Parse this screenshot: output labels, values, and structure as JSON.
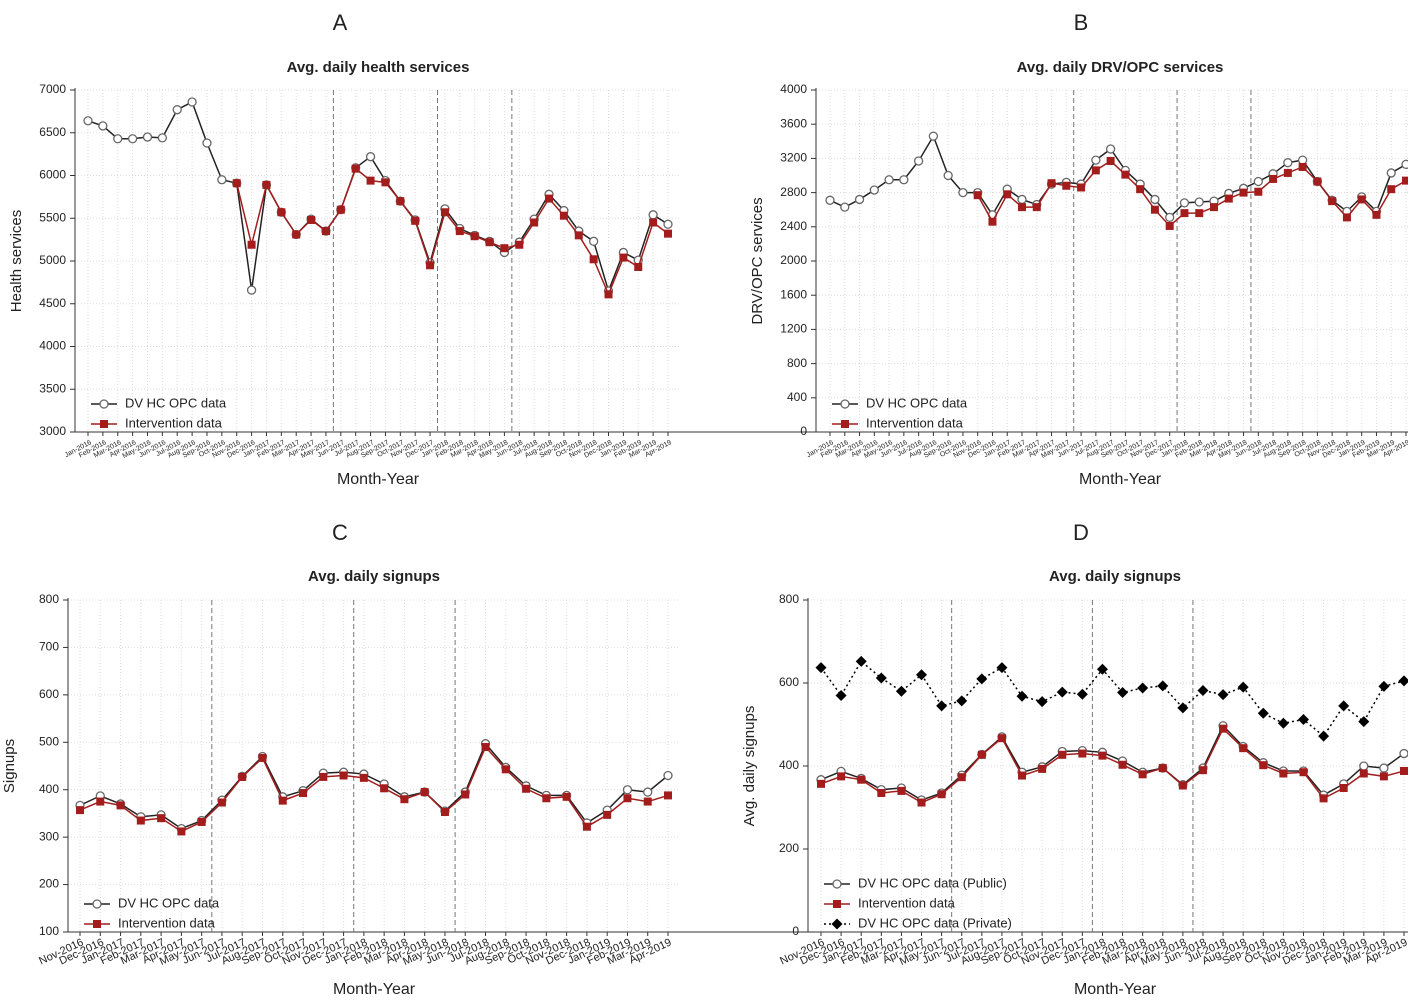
{
  "chart_data": [
    {
      "type": "line",
      "panel_label": "A",
      "title": "Avg. daily health services",
      "xlabel": "Month-Year",
      "ylabel": "Health services",
      "categories": [
        "Jan-2016",
        "Feb-2016",
        "Mar-2016",
        "Apr-2016",
        "May-2016",
        "Jun-2016",
        "Jul-2016",
        "Aug-2016",
        "Sep-2016",
        "Oct-2016",
        "Nov-2016",
        "Dec-2016",
        "Jan-2017",
        "Feb-2017",
        "Mar-2017",
        "Apr-2017",
        "May-2017",
        "Jun-2017",
        "Jul-2017",
        "Aug-2017",
        "Sep-2017",
        "Oct-2017",
        "Nov-2017",
        "Dec-2017",
        "Jan-2018",
        "Feb-2018",
        "Mar-2018",
        "Apr-2018",
        "May-2018",
        "Jun-2018",
        "Jul-2018",
        "Aug-2018",
        "Sep-2018",
        "Oct-2018",
        "Nov-2018",
        "Dec-2018",
        "Jan-2019",
        "Feb-2019",
        "Mar-2019",
        "Apr-2019"
      ],
      "series": [
        {
          "name": "DV HC OPC data",
          "color": "#222222",
          "marker": "circle",
          "dash": "solid",
          "values": [
            6640,
            6580,
            6430,
            6430,
            6450,
            6440,
            6770,
            6860,
            6380,
            5950,
            5910,
            4660,
            5890,
            5570,
            5310,
            5490,
            5350,
            5600,
            6090,
            6220,
            5940,
            5700,
            5480,
            4980,
            5610,
            5380,
            5300,
            5230,
            5100,
            5220,
            5490,
            5780,
            5590,
            5350,
            5230,
            4650,
            5100,
            5010,
            5540,
            5430
          ]
        },
        {
          "name": "Intervention data",
          "color": "#a31d1d",
          "marker": "square",
          "dash": "solid",
          "values": [
            null,
            null,
            null,
            null,
            null,
            null,
            null,
            null,
            null,
            null,
            5910,
            5190,
            5890,
            5570,
            5310,
            5480,
            5350,
            5600,
            6080,
            5940,
            5920,
            5700,
            5470,
            4950,
            5570,
            5350,
            5290,
            5220,
            5150,
            5190,
            5450,
            5730,
            5530,
            5300,
            5020,
            4610,
            5040,
            4930,
            5450,
            5320
          ]
        }
      ],
      "ylim": [
        3000,
        7000
      ],
      "yticks": [
        3000,
        3500,
        4000,
        4500,
        5000,
        5500,
        6000,
        6500,
        7000
      ],
      "vlines": [
        "Jun-2017",
        "Jan-2018",
        "Jun-2018"
      ],
      "grid": true,
      "legend": "lower left"
    },
    {
      "type": "line",
      "panel_label": "B",
      "title": "Avg. daily DRV/OPC services",
      "xlabel": "Month-Year",
      "ylabel": "DRV/OPC services",
      "categories": [
        "Jan-2016",
        "Feb-2016",
        "Mar-2016",
        "Apr-2016",
        "May-2016",
        "Jun-2016",
        "Jul-2016",
        "Aug-2016",
        "Sep-2016",
        "Oct-2016",
        "Nov-2016",
        "Dec-2016",
        "Jan-2017",
        "Feb-2017",
        "Mar-2017",
        "Apr-2017",
        "May-2017",
        "Jun-2017",
        "Jul-2017",
        "Aug-2017",
        "Sep-2017",
        "Oct-2017",
        "Nov-2017",
        "Dec-2017",
        "Jan-2018",
        "Feb-2018",
        "Mar-2018",
        "Apr-2018",
        "May-2018",
        "Jun-2018",
        "Jul-2018",
        "Aug-2018",
        "Sep-2018",
        "Oct-2018",
        "Nov-2018",
        "Dec-2018",
        "Jan-2019",
        "Feb-2019",
        "Mar-2019",
        "Apr-2019"
      ],
      "series": [
        {
          "name": "DV HC OPC data",
          "color": "#222222",
          "marker": "circle",
          "dash": "solid",
          "values": [
            2710,
            2630,
            2720,
            2830,
            2950,
            2950,
            3170,
            3460,
            3000,
            2800,
            2800,
            2540,
            2840,
            2720,
            2660,
            2900,
            2920,
            2900,
            3180,
            3310,
            3060,
            2900,
            2720,
            2510,
            2680,
            2690,
            2700,
            2790,
            2850,
            2930,
            3020,
            3150,
            3180,
            2930,
            2710,
            2580,
            2750,
            2580,
            3030,
            3130
          ]
        },
        {
          "name": "Intervention data",
          "color": "#a31d1d",
          "marker": "square",
          "dash": "solid",
          "values": [
            null,
            null,
            null,
            null,
            null,
            null,
            null,
            null,
            null,
            null,
            2770,
            2460,
            2780,
            2630,
            2630,
            2910,
            2880,
            2860,
            3060,
            3170,
            3010,
            2840,
            2600,
            2410,
            2560,
            2560,
            2630,
            2730,
            2800,
            2810,
            2960,
            3030,
            3100,
            2930,
            2700,
            2510,
            2720,
            2540,
            2840,
            2940
          ]
        }
      ],
      "ylim": [
        0,
        4000
      ],
      "yticks": [
        0,
        400,
        800,
        1200,
        1600,
        2000,
        2400,
        2800,
        3200,
        3600,
        4000
      ],
      "vlines": [
        "Jun-2017",
        "Jan-2018",
        "Jun-2018"
      ],
      "grid": true,
      "legend": "lower left"
    },
    {
      "type": "line",
      "panel_label": "C",
      "title": "Avg. daily signups",
      "xlabel": "Month-Year",
      "ylabel": "Signups",
      "categories": [
        "Nov-2016",
        "Dec-2016",
        "Jan-2017",
        "Feb-2017",
        "Mar-2017",
        "Apr-2017",
        "May-2017",
        "Jun-2017",
        "Jul-2017",
        "Aug-2017",
        "Sep-2017",
        "Oct-2017",
        "Nov-2017",
        "Dec-2017",
        "Jan-2018",
        "Feb-2018",
        "Mar-2018",
        "Apr-2018",
        "May-2018",
        "Jun-2018",
        "Jul-2018",
        "Aug-2018",
        "Sep-2018",
        "Oct-2018",
        "Nov-2018",
        "Dec-2018",
        "Jan-2019",
        "Feb-2019",
        "Mar-2019",
        "Apr-2019"
      ],
      "series": [
        {
          "name": "DV HC OPC data",
          "color": "#222222",
          "marker": "circle",
          "dash": "solid",
          "values": [
            367,
            387,
            370,
            343,
            347,
            318,
            335,
            378,
            428,
            470,
            385,
            398,
            435,
            437,
            433,
            412,
            385,
            395,
            355,
            395,
            497,
            447,
            408,
            388,
            388,
            330,
            357,
            400,
            395,
            430
          ]
        },
        {
          "name": "Intervention data",
          "color": "#a31d1d",
          "marker": "square",
          "dash": "solid",
          "values": [
            357,
            375,
            367,
            335,
            340,
            312,
            332,
            373,
            427,
            467,
            377,
            393,
            427,
            430,
            425,
            403,
            380,
            395,
            353,
            390,
            490,
            443,
            402,
            382,
            385,
            322,
            347,
            382,
            375,
            388
          ]
        }
      ],
      "ylim": [
        100,
        800
      ],
      "yticks": [
        100,
        200,
        300,
        400,
        500,
        600,
        700,
        800
      ],
      "vlines": [
        "Jun-2017",
        "Jan-2018",
        "Jun-2018"
      ],
      "grid": true,
      "legend": "lower left"
    },
    {
      "type": "line",
      "panel_label": "D",
      "title": "Avg. daily signups",
      "xlabel": "Month-Year",
      "ylabel": "Avg. daily signups",
      "categories": [
        "Nov-2016",
        "Dec-2016",
        "Jan-2017",
        "Feb-2017",
        "Mar-2017",
        "Apr-2017",
        "May-2017",
        "Jun-2017",
        "Jul-2017",
        "Aug-2017",
        "Sep-2017",
        "Oct-2017",
        "Nov-2017",
        "Dec-2017",
        "Jan-2018",
        "Feb-2018",
        "Mar-2018",
        "Apr-2018",
        "May-2018",
        "Jun-2018",
        "Jul-2018",
        "Aug-2018",
        "Sep-2018",
        "Oct-2018",
        "Nov-2018",
        "Dec-2018",
        "Jan-2019",
        "Feb-2019",
        "Mar-2019",
        "Apr-2019"
      ],
      "series": [
        {
          "name": "DV HC OPC data (Public)",
          "color": "#222222",
          "marker": "circle",
          "dash": "solid",
          "values": [
            367,
            387,
            370,
            343,
            347,
            318,
            335,
            378,
            428,
            470,
            385,
            398,
            435,
            437,
            433,
            412,
            385,
            395,
            355,
            395,
            497,
            447,
            408,
            388,
            388,
            330,
            357,
            400,
            395,
            430
          ]
        },
        {
          "name": "Intervention data",
          "color": "#a31d1d",
          "marker": "square",
          "dash": "solid",
          "values": [
            357,
            375,
            367,
            335,
            340,
            312,
            332,
            373,
            427,
            467,
            377,
            393,
            427,
            430,
            425,
            403,
            380,
            395,
            353,
            390,
            490,
            443,
            402,
            382,
            385,
            322,
            347,
            382,
            375,
            388
          ]
        },
        {
          "name": "DV HC OPC data (Private)",
          "color": "#000000",
          "marker": "diamond",
          "dash": "dotted",
          "values": [
            637,
            570,
            652,
            612,
            580,
            620,
            545,
            557,
            610,
            637,
            568,
            555,
            578,
            573,
            633,
            577,
            588,
            593,
            540,
            582,
            572,
            590,
            527,
            503,
            512,
            472,
            545,
            507,
            592,
            605
          ]
        }
      ],
      "ylim": [
        0,
        800
      ],
      "yticks": [
        0,
        200,
        400,
        600,
        800
      ],
      "vlines": [
        "Jun-2017",
        "Jan-2018",
        "Jun-2018"
      ],
      "grid": true,
      "legend": "lower left"
    }
  ]
}
